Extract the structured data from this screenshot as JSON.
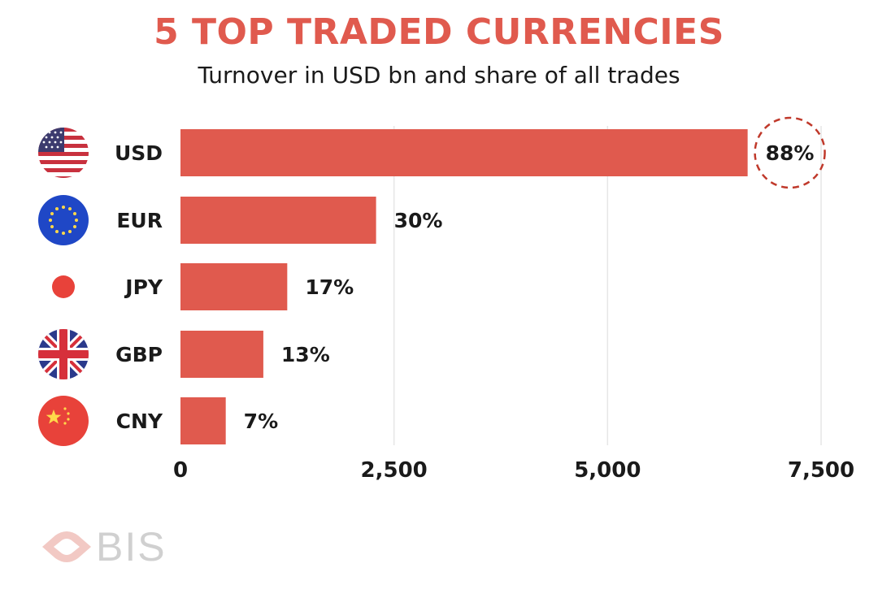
{
  "title": "5 TOP TRADED CURRENCIES",
  "subtitle": "Turnover in USD bn and share of all trades",
  "source": "BIS",
  "colors": {
    "bar": "#e05a4e",
    "title": "#e05a4e",
    "grid": "#e6e6e6",
    "highlight_ring": "#c0392b"
  },
  "chart_data": {
    "type": "bar",
    "orientation": "horizontal",
    "categories": [
      "USD",
      "EUR",
      "JPY",
      "GBP",
      "CNY"
    ],
    "values": [
      6640,
      2290,
      1250,
      970,
      530
    ],
    "data_labels": [
      "88%",
      "30%",
      "17%",
      "13%",
      "7%"
    ],
    "highlight": "USD",
    "title": "5 TOP TRADED CURRENCIES",
    "subtitle": "Turnover in USD bn and share of all trades",
    "xlim": [
      0,
      7500
    ],
    "xticks": [
      0,
      2500,
      5000,
      7500
    ],
    "xtick_labels": [
      "0",
      "2,500",
      "5,000",
      "7,500"
    ],
    "grid": "vertical",
    "flags": [
      "us-flag-icon",
      "eu-flag-icon",
      "japan-flag-icon",
      "uk-flag-icon",
      "china-flag-icon"
    ]
  }
}
